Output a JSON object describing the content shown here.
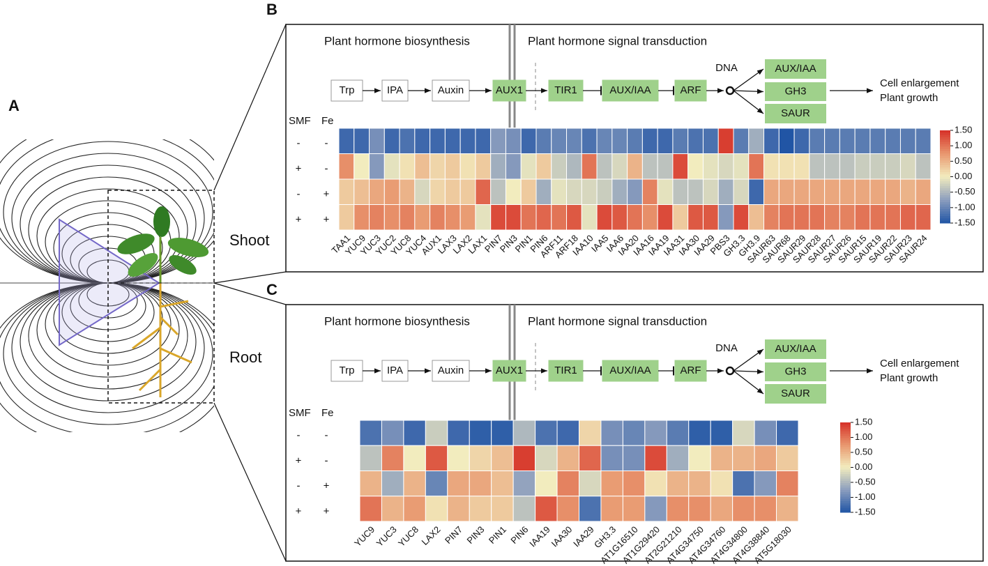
{
  "panel_labels": [
    "A",
    "B",
    "C"
  ],
  "panel_a": {
    "shoot_label": "Shoot",
    "root_label": "Root"
  },
  "panels": [
    {
      "pathway": {
        "section_left": "Plant hormone biosynthesis",
        "section_right": "Plant hormone signal transduction",
        "nodes": [
          "Trp",
          "IPA",
          "Auxin",
          "AUX1",
          "TIR1",
          "AUX/IAA",
          "ARF"
        ],
        "dna": "DNA",
        "outputs": [
          "AUX/IAA",
          "GH3",
          "SAUR"
        ],
        "result": [
          "Cell enlargement",
          "Plant growth"
        ]
      },
      "heatmap": {
        "row_header": [
          "SMF",
          "Fe"
        ],
        "row_conditions": [
          [
            "-",
            "-"
          ],
          [
            "+",
            "-"
          ],
          [
            "-",
            "+"
          ],
          [
            "+",
            "+"
          ]
        ],
        "genes": [
          "TAA1",
          "YUC9",
          "YUC3",
          "YUC2",
          "YUC8",
          "YUC4",
          "AUX1",
          "LAX3",
          "LAX2",
          "LAX1",
          "PIN7",
          "PIN3",
          "PIN1",
          "PIN6",
          "ARF11",
          "ARF18",
          "IAA10",
          "IAA5",
          "IAA6",
          "IAA20",
          "IAA16",
          "IAA19",
          "IAA31",
          "IAA30",
          "IAA29",
          "PBS3",
          "GH3.3",
          "GH3.9",
          "SAUR63",
          "SAUR68",
          "SAUR29",
          "SAUR28",
          "SAUR27",
          "SAUR26",
          "SAUR15",
          "SAUR19",
          "SAUR22",
          "SAUR23",
          "SAUR24"
        ],
        "values": [
          [
            -1.3,
            -1.3,
            -0.9,
            -1.3,
            -1.2,
            -1.3,
            -1.3,
            -1.3,
            -1.3,
            -1.3,
            -0.8,
            -0.9,
            -1.3,
            -1.1,
            -1.0,
            -1.0,
            -1.2,
            -1.0,
            -1.0,
            -1.1,
            -1.3,
            -1.3,
            -1.1,
            -1.2,
            -1.2,
            1.4,
            -1.1,
            -0.6,
            -1.3,
            -1.5,
            -1.3,
            -1.1,
            -1.1,
            -1.1,
            -1.1,
            -1.1,
            -1.1,
            -1.1,
            -1.1
          ],
          [
            0.8,
            0.0,
            -0.8,
            -0.1,
            0.1,
            0.4,
            0.2,
            0.3,
            0.1,
            0.3,
            -0.6,
            -0.8,
            -0.1,
            0.3,
            -0.3,
            -0.5,
            1.0,
            -0.4,
            -0.2,
            0.5,
            -0.4,
            -0.4,
            1.3,
            0.0,
            -0.1,
            -0.2,
            -0.1,
            1.0,
            0.1,
            0.1,
            0.1,
            -0.4,
            -0.4,
            -0.4,
            -0.3,
            -0.3,
            -0.3,
            -0.2,
            -0.4
          ],
          [
            0.3,
            0.4,
            0.6,
            0.7,
            0.5,
            -0.2,
            0.2,
            0.3,
            0.3,
            1.1,
            -0.4,
            0.0,
            0.3,
            -0.6,
            -0.1,
            -0.2,
            -0.2,
            -0.3,
            -0.6,
            -0.8,
            0.9,
            -0.1,
            -0.4,
            -0.4,
            -0.2,
            -0.6,
            -0.2,
            -1.3,
            0.6,
            0.6,
            0.6,
            0.6,
            0.6,
            0.6,
            0.6,
            0.6,
            0.6,
            0.5,
            0.6
          ],
          [
            0.3,
            0.8,
            0.9,
            0.8,
            0.9,
            0.7,
            0.9,
            0.8,
            0.7,
            -0.1,
            1.3,
            1.3,
            1.0,
            1.1,
            1.0,
            1.2,
            -0.1,
            1.3,
            1.2,
            1.0,
            0.8,
            1.3,
            0.3,
            1.2,
            1.2,
            -0.8,
            1.3,
            0.4,
            0.9,
            1.0,
            1.0,
            1.0,
            0.9,
            0.9,
            1.0,
            1.0,
            1.0,
            1.1,
            1.1
          ]
        ],
        "clim": [
          -1.5,
          1.5
        ],
        "cticks": [
          {
            "value": 1.5,
            "label": "1.50"
          },
          {
            "value": 1,
            "label": "1.00"
          },
          {
            "value": 0.5,
            "label": "0.50"
          },
          {
            "value": 0,
            "label": "0.00"
          },
          {
            "value": -0.5,
            "label": "-0.50"
          },
          {
            "value": -1,
            "label": "-1.00"
          },
          {
            "value": -1.5,
            "label": "-1.50"
          }
        ]
      }
    },
    {
      "pathway": {
        "section_left": "Plant hormone biosynthesis",
        "section_right": "Plant hormone signal transduction",
        "nodes": [
          "Trp",
          "IPA",
          "Auxin",
          "AUX1",
          "TIR1",
          "AUX/IAA",
          "ARF"
        ],
        "dna": "DNA",
        "outputs": [
          "AUX/IAA",
          "GH3",
          "SAUR"
        ],
        "result": [
          "Cell enlargement",
          "Plant growth"
        ]
      },
      "heatmap": {
        "row_header": [
          "SMF",
          "Fe"
        ],
        "row_conditions": [
          [
            "-",
            "-"
          ],
          [
            "+",
            "-"
          ],
          [
            "-",
            "+"
          ],
          [
            "+",
            "+"
          ]
        ],
        "genes": [
          "YUC9",
          "YUC3",
          "YUC8",
          "LAX2",
          "PIN7",
          "PIN3",
          "PIN1",
          "PIN6",
          "IAA19",
          "IAA30",
          "IAA29",
          "GH3.3",
          "AT1G16510",
          "AT1G29420",
          "AT2G21210",
          "AT4G34750",
          "AT4G34760",
          "AT4G34800",
          "AT4G38840",
          "AT5G18030"
        ],
        "values": [
          [
            -1.2,
            -0.9,
            -1.3,
            -0.3,
            -1.3,
            -1.4,
            -1.4,
            -0.5,
            -1.2,
            -1.3,
            0.2,
            -0.9,
            -1.0,
            -0.8,
            -1.1,
            -1.4,
            -1.4,
            -0.2,
            -0.9,
            -1.3
          ],
          [
            -0.4,
            0.9,
            0.0,
            1.2,
            0.0,
            0.2,
            0.4,
            1.4,
            -0.2,
            0.5,
            1.1,
            -0.9,
            -0.9,
            1.3,
            -0.6,
            0.0,
            0.5,
            0.5,
            0.6,
            0.3
          ],
          [
            0.5,
            -0.6,
            0.5,
            -1.0,
            0.6,
            0.6,
            0.4,
            -0.7,
            0.0,
            0.9,
            -0.2,
            0.7,
            0.8,
            0.1,
            0.5,
            0.5,
            0.1,
            -1.2,
            -0.8,
            0.9
          ],
          [
            1.0,
            0.5,
            0.7,
            0.1,
            0.5,
            0.3,
            0.3,
            -0.4,
            1.2,
            0.8,
            -1.2,
            0.7,
            0.7,
            -0.8,
            0.8,
            0.8,
            0.6,
            0.8,
            0.8,
            0.5
          ]
        ],
        "clim": [
          -1.5,
          1.5
        ],
        "cticks": [
          {
            "value": 1.5,
            "label": "1.50"
          },
          {
            "value": 1,
            "label": "1.00"
          },
          {
            "value": 0.5,
            "label": "0.50"
          },
          {
            "value": 0,
            "label": "0.00"
          },
          {
            "value": -0.5,
            "label": "-0.50"
          },
          {
            "value": -1,
            "label": "-1.00"
          },
          {
            "value": -1.5,
            "label": "-1.50"
          }
        ]
      }
    }
  ]
}
